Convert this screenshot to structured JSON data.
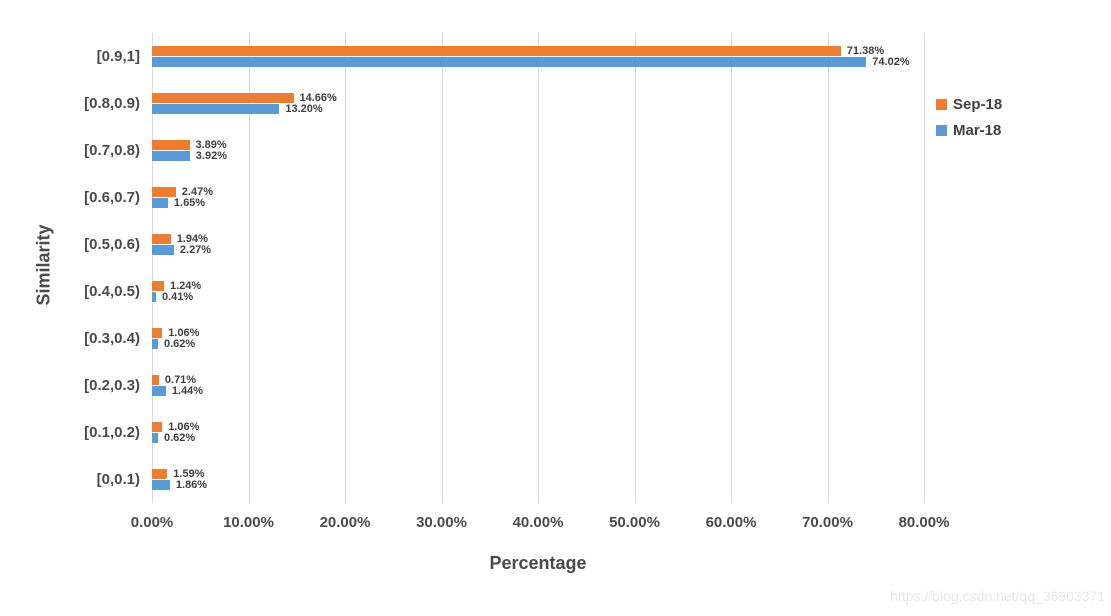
{
  "watermark": "https://blog.csdn.net/qq_36903371",
  "chart_data": {
    "type": "bar",
    "orientation": "horizontal",
    "title": "",
    "xlabel": "Percentage",
    "ylabel": "Similarity",
    "categories": [
      "[0.9,1]",
      "[0.8,0.9)",
      "[0.7,0.8)",
      "[0.6,0.7)",
      "[0.5,0.6)",
      "[0.4,0.5)",
      "[0.3,0.4)",
      "[0.2,0.3)",
      "[0.1,0.2)",
      "[0,0.1)"
    ],
    "series": [
      {
        "name": "Sep-18",
        "color": "#ED7D31",
        "values": [
          71.38,
          14.66,
          3.89,
          2.47,
          1.94,
          1.24,
          1.06,
          0.71,
          1.06,
          1.59
        ],
        "labels": [
          "71.38%",
          "14.66%",
          "3.89%",
          "2.47%",
          "1.94%",
          "1.24%",
          "1.06%",
          "0.71%",
          "1.06%",
          "1.59%"
        ]
      },
      {
        "name": "Mar-18",
        "color": "#5B9BD5",
        "values": [
          74.02,
          13.2,
          3.92,
          1.65,
          2.27,
          0.41,
          0.62,
          1.44,
          0.62,
          1.86
        ],
        "labels": [
          "74.02%",
          "13.20%",
          "3.92%",
          "1.65%",
          "2.27%",
          "0.41%",
          "0.62%",
          "1.44%",
          "0.62%",
          "1.86%"
        ]
      }
    ],
    "x_tick_labels": [
      "0.00%",
      "10.00%",
      "20.00%",
      "30.00%",
      "40.00%",
      "50.00%",
      "60.00%",
      "70.00%",
      "80.00%"
    ],
    "x_tick_values": [
      0,
      10,
      20,
      30,
      40,
      50,
      60,
      70,
      80
    ],
    "xlim": [
      0,
      80
    ],
    "grid": true,
    "gridline_color": "#D8D8D8",
    "legend_position": "right",
    "legend": [
      "Sep-18",
      "Mar-18"
    ]
  }
}
